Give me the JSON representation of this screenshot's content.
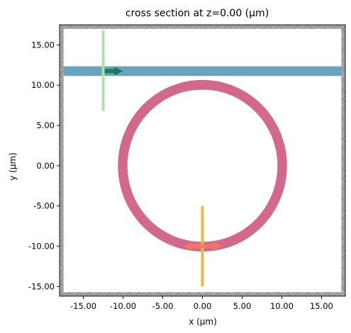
{
  "title": "cross section at z=0.00 (μm)",
  "xlabel": "x (μm)",
  "ylabel": "y (μm)",
  "xlim": [
    -18,
    18
  ],
  "ylim": [
    -16.2,
    17.5
  ],
  "pml_thickness": 0.5,
  "x_ticks": [
    {
      "v": -15,
      "label": "-15.00"
    },
    {
      "v": -10,
      "label": "-10.00"
    },
    {
      "v": -5,
      "label": "-5.00"
    },
    {
      "v": 0,
      "label": "0.00"
    },
    {
      "v": 5,
      "label": "5.00"
    },
    {
      "v": 10,
      "label": "10.00"
    },
    {
      "v": 15,
      "label": "15.00"
    }
  ],
  "y_ticks": [
    {
      "v": 15,
      "label": "15.00"
    },
    {
      "v": 10,
      "label": "10.00"
    },
    {
      "v": 5,
      "label": "5.00"
    },
    {
      "v": 0,
      "label": "0.00"
    },
    {
      "v": -5,
      "label": "-5.00"
    },
    {
      "v": -10,
      "label": "-10.00"
    },
    {
      "v": -15,
      "label": "-15.00"
    }
  ],
  "structures": {
    "waveguide": {
      "y_center": 11.75,
      "width": 1.2,
      "color": "#6ba3bd"
    },
    "ring": {
      "cx": 0,
      "cy": 0,
      "r_inner": 9.45,
      "r_outer": 10.65,
      "color": "#d2698c"
    }
  },
  "source": {
    "x": 0,
    "y": -10,
    "y_min": -15,
    "y_max": -5,
    "color": "#e2bd4a",
    "arrow_color": "#f47a5b"
  },
  "monitor": {
    "x": -12.5,
    "y_min": 6.8,
    "y_max": 16.8,
    "color": "#a9e5a8",
    "arrow_color": "#1c7a5a",
    "arrow_y": 11.75
  },
  "colors": {
    "pml": "#a3a3a3",
    "pml_line": "#7a7a7a"
  }
}
